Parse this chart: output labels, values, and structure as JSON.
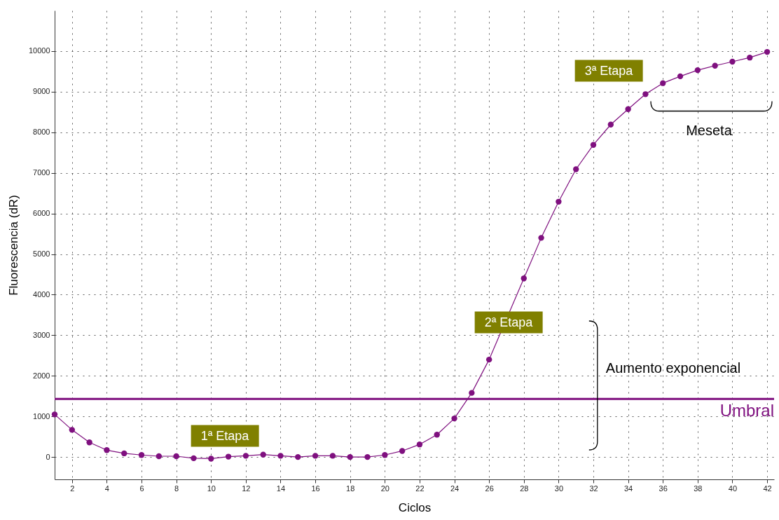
{
  "chart_data": {
    "type": "line",
    "xlabel": "Ciclos",
    "ylabel": "Fluorescencia (dR)",
    "x": [
      1,
      2,
      3,
      4,
      5,
      6,
      7,
      8,
      9,
      10,
      11,
      12,
      13,
      14,
      15,
      16,
      17,
      18,
      19,
      20,
      21,
      22,
      23,
      24,
      25,
      26,
      28,
      29,
      30,
      31,
      32,
      33,
      34,
      35,
      36,
      37,
      38,
      39,
      40,
      41,
      42
    ],
    "series": [
      {
        "color": "#7f107f",
        "values": [
          1050,
          670,
          360,
          170,
          90,
          50,
          20,
          20,
          -30,
          -40,
          10,
          30,
          60,
          30,
          0,
          30,
          30,
          0,
          0,
          50,
          150,
          310,
          550,
          950,
          1580,
          2400,
          4400,
          5400,
          6290,
          7090,
          7690,
          8190,
          8570,
          8940,
          9210,
          9380,
          9530,
          9640,
          9740,
          9840,
          9980
        ]
      }
    ],
    "xlim": [
      1,
      42.4
    ],
    "xticks": [
      2,
      4,
      6,
      8,
      10,
      12,
      14,
      16,
      18,
      20,
      22,
      24,
      26,
      28,
      30,
      32,
      34,
      36,
      38,
      40,
      42
    ],
    "ylim": [
      -550,
      11000
    ],
    "yticks": [
      0,
      1000,
      2000,
      3000,
      4000,
      5000,
      6000,
      7000,
      8000,
      9000,
      10000
    ],
    "grid": true,
    "marker": "circle",
    "line_style": "solid",
    "ref_lines": [
      {
        "axis": "y",
        "value": 1430,
        "label": "Umbral",
        "color": "#7f107f"
      }
    ],
    "annotations": [
      "1ª Etapa",
      "2ª Etapa",
      "3ª Etapa",
      "Meseta",
      "Aumento exponencial"
    ]
  }
}
